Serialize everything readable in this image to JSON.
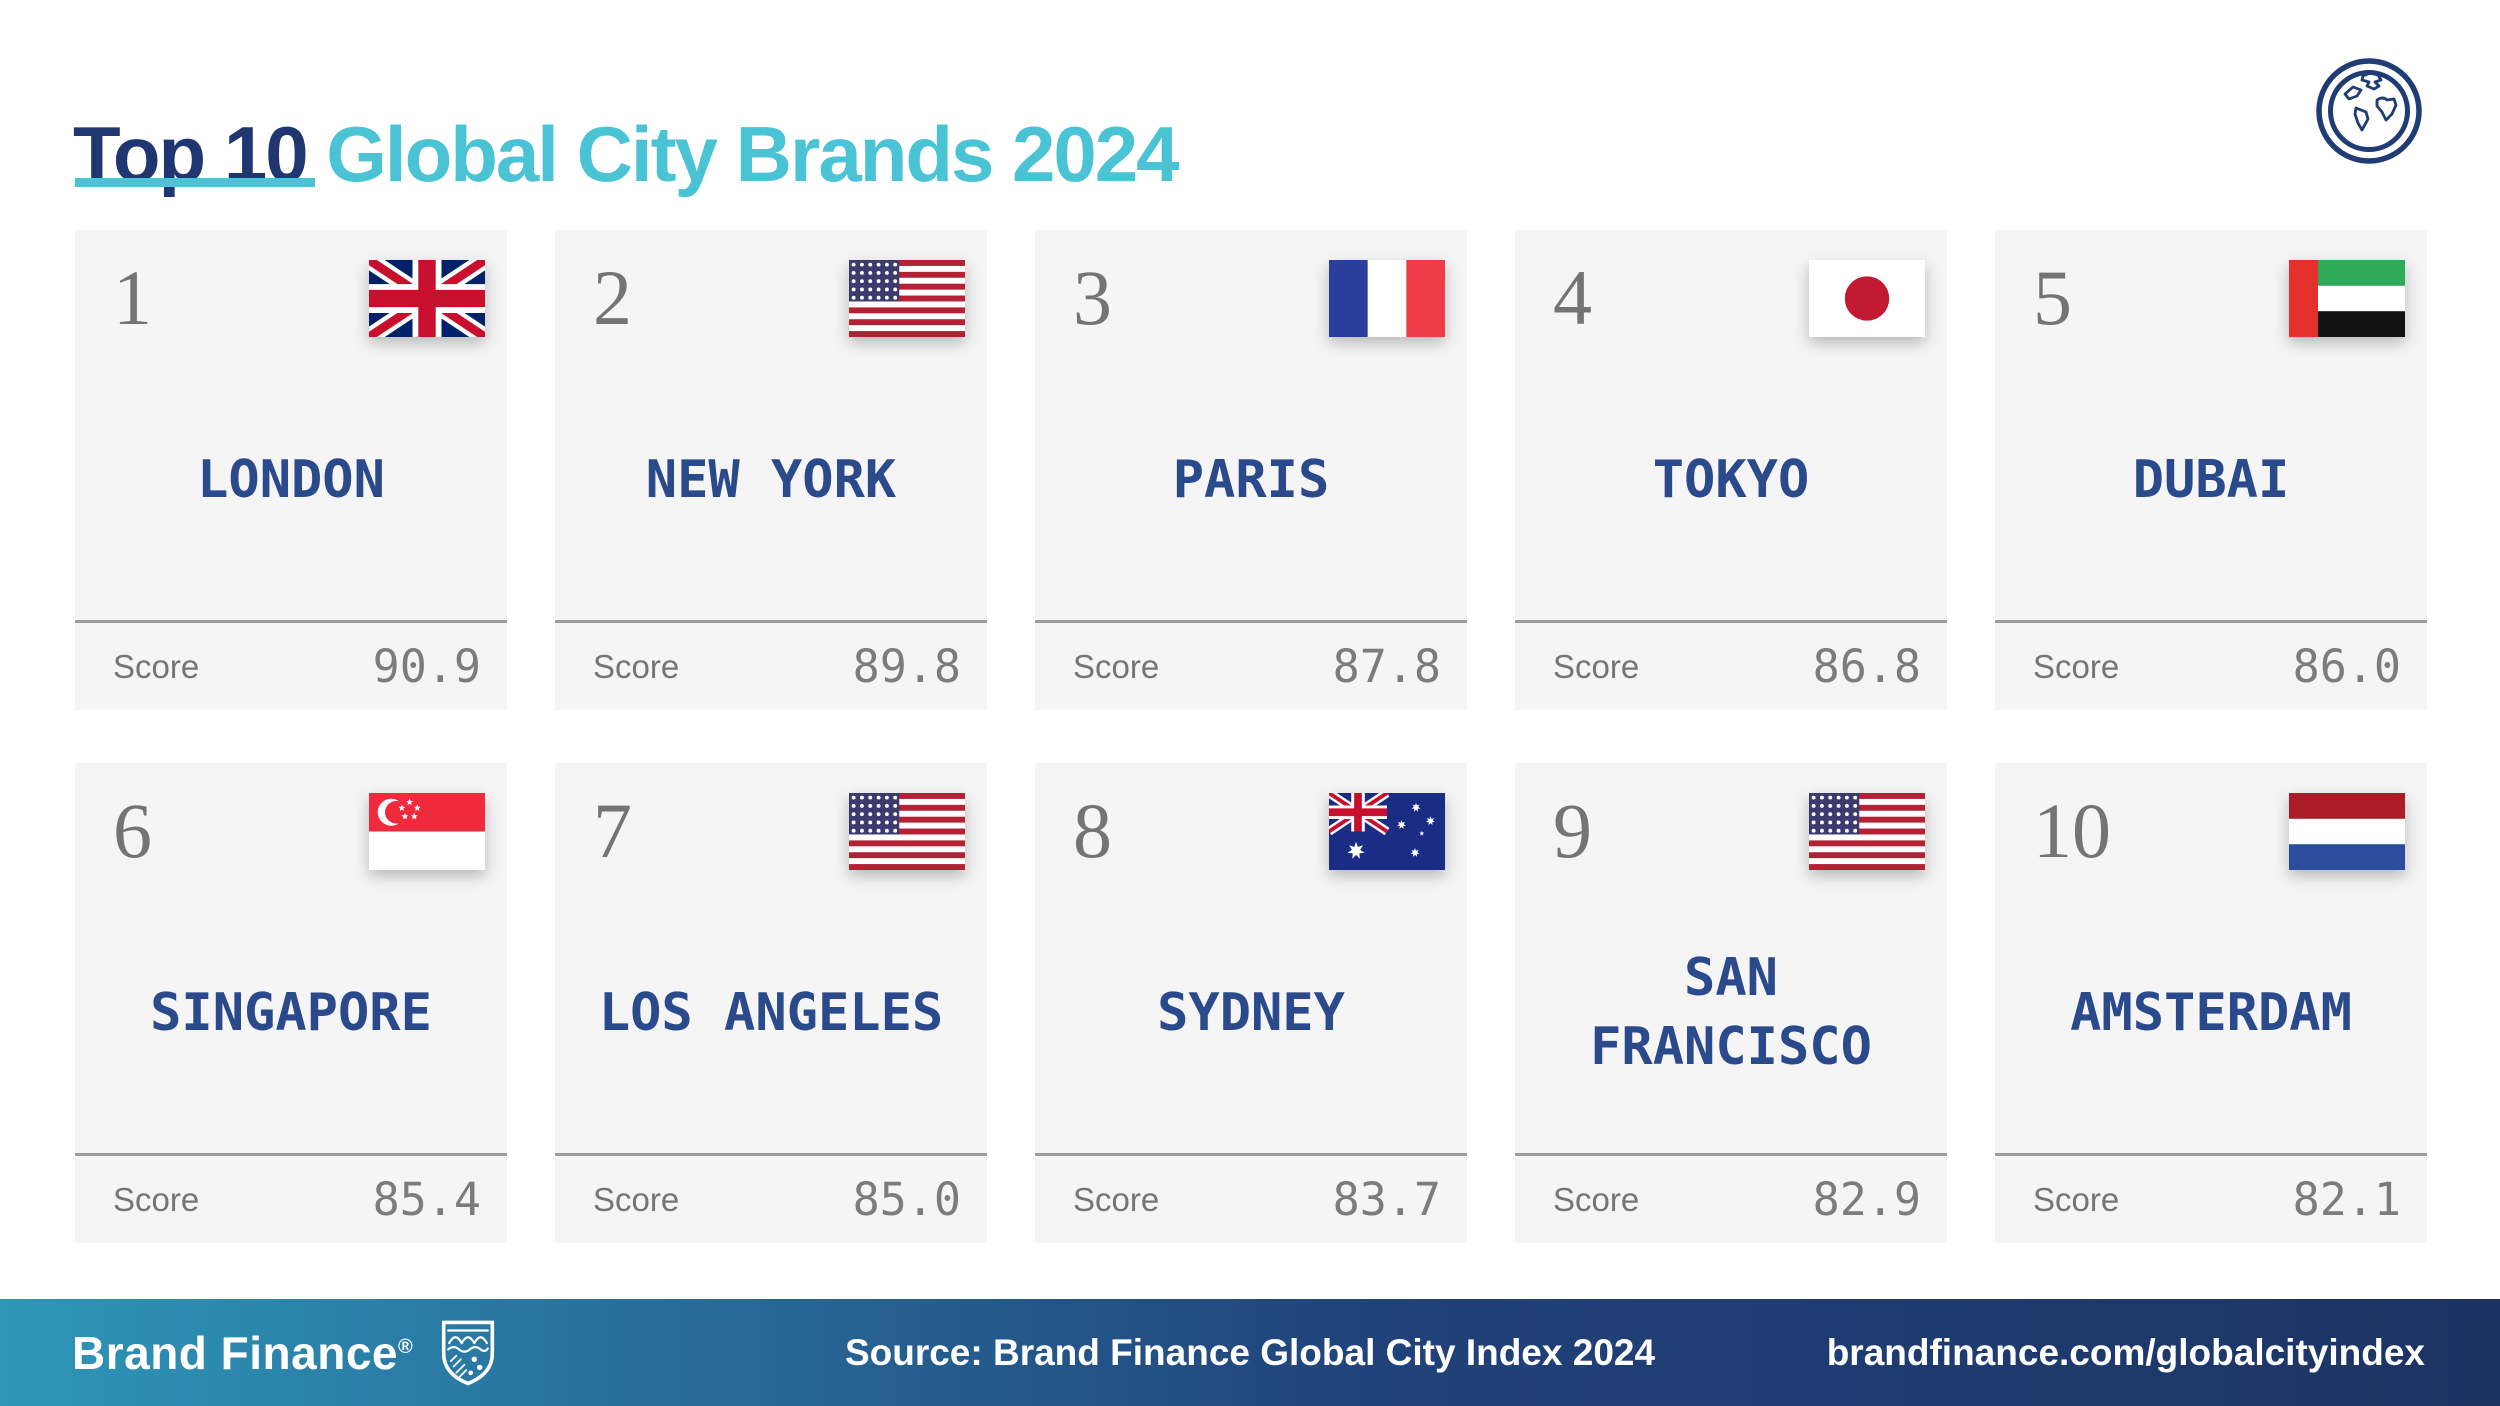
{
  "header": {
    "title_primary": "Top 10",
    "title_secondary": "Global City Brands 2024",
    "globe_icon": "globe-icon"
  },
  "labels": {
    "score": "Score"
  },
  "cards": [
    {
      "rank": "1",
      "city": "LONDON",
      "flag": "uk",
      "score": "90.9"
    },
    {
      "rank": "2",
      "city": "NEW YORK",
      "flag": "usa",
      "score": "89.8"
    },
    {
      "rank": "3",
      "city": "PARIS",
      "flag": "france",
      "score": "87.8"
    },
    {
      "rank": "4",
      "city": "TOKYO",
      "flag": "japan",
      "score": "86.8"
    },
    {
      "rank": "5",
      "city": "DUBAI",
      "flag": "uae",
      "score": "86.0"
    },
    {
      "rank": "6",
      "city": "SINGAPORE",
      "flag": "singapore",
      "score": "85.4"
    },
    {
      "rank": "7",
      "city": "LOS ANGELES",
      "flag": "usa",
      "score": "85.0"
    },
    {
      "rank": "8",
      "city": "SYDNEY",
      "flag": "australia",
      "score": "83.7"
    },
    {
      "rank": "9",
      "city": "SAN FRANCISCO",
      "flag": "usa",
      "score": "82.9"
    },
    {
      "rank": "10",
      "city": "AMSTERDAM",
      "flag": "netherlands",
      "score": "82.1"
    }
  ],
  "footer": {
    "logo_text": "Brand Finance",
    "logo_reg": "®",
    "shield_icon": "brand-finance-shield-icon",
    "source": "Source: Brand Finance Global City Index 2024",
    "url": "brandfinance.com/globalcityindex"
  },
  "colors": {
    "title_navy": "#203671",
    "accent_teal": "#4AC4D4",
    "city_navy": "#2A4A8C",
    "card_background": "#F5F5F6",
    "rank_gray": "#747474",
    "score_gray": "#7C7C7C",
    "footer_gradient_start": "#2E96B8",
    "footer_gradient_end": "#1C3464"
  },
  "chart_data": {
    "type": "table",
    "title": "Top 10 Global City Brands 2024",
    "categories": [
      "London",
      "New York",
      "Paris",
      "Tokyo",
      "Dubai",
      "Singapore",
      "Los Angeles",
      "Sydney",
      "San Francisco",
      "Amsterdam"
    ],
    "values": [
      90.9,
      89.8,
      87.8,
      86.8,
      86.0,
      85.4,
      85.0,
      83.7,
      82.9,
      82.1
    ],
    "value_label": "Score",
    "ranks": [
      1,
      2,
      3,
      4,
      5,
      6,
      7,
      8,
      9,
      10
    ],
    "source": "Source: Brand Finance Global City Index 2024"
  }
}
